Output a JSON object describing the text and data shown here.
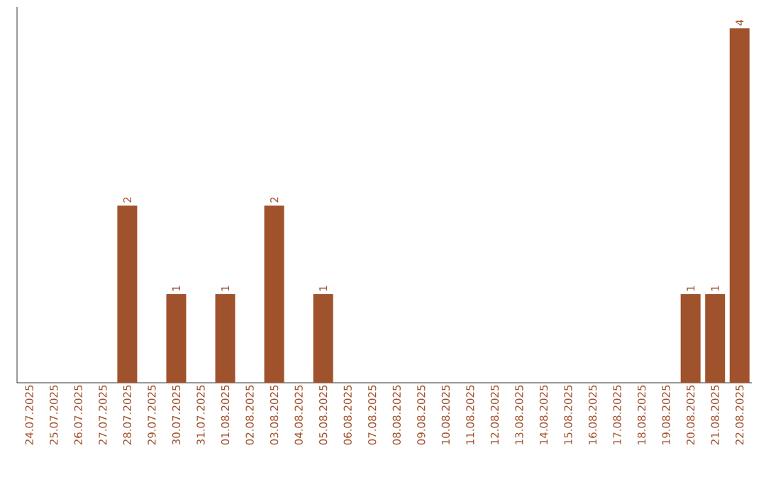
{
  "chart_data": {
    "type": "bar",
    "categories": [
      "24.07.2025",
      "25.07.2025",
      "26.07.2025",
      "27.07.2025",
      "28.07.2025",
      "29.07.2025",
      "30.07.2025",
      "31.07.2025",
      "01.08.2025",
      "02.08.2025",
      "03.08.2025",
      "04.08.2025",
      "05.08.2025",
      "06.08.2025",
      "07.08.2025",
      "08.08.2025",
      "09.08.2025",
      "10.08.2025",
      "11.08.2025",
      "12.08.2025",
      "13.08.2025",
      "14.08.2025",
      "15.08.2025",
      "16.08.2025",
      "17.08.2025",
      "18.08.2025",
      "19.08.2025",
      "20.08.2025",
      "21.08.2025",
      "22.08.2025"
    ],
    "values": [
      0,
      0,
      0,
      0,
      2,
      0,
      1,
      0,
      1,
      0,
      2,
      0,
      1,
      0,
      0,
      0,
      0,
      0,
      0,
      0,
      0,
      0,
      0,
      0,
      0,
      0,
      0,
      1,
      1,
      4
    ],
    "color": "#a0522d",
    "value_labels": [
      null,
      null,
      null,
      null,
      "2",
      null,
      "1",
      null,
      "1",
      null,
      "2",
      null,
      "1",
      null,
      null,
      null,
      null,
      null,
      null,
      null,
      null,
      null,
      null,
      null,
      null,
      null,
      null,
      "1",
      "1",
      "4"
    ]
  }
}
